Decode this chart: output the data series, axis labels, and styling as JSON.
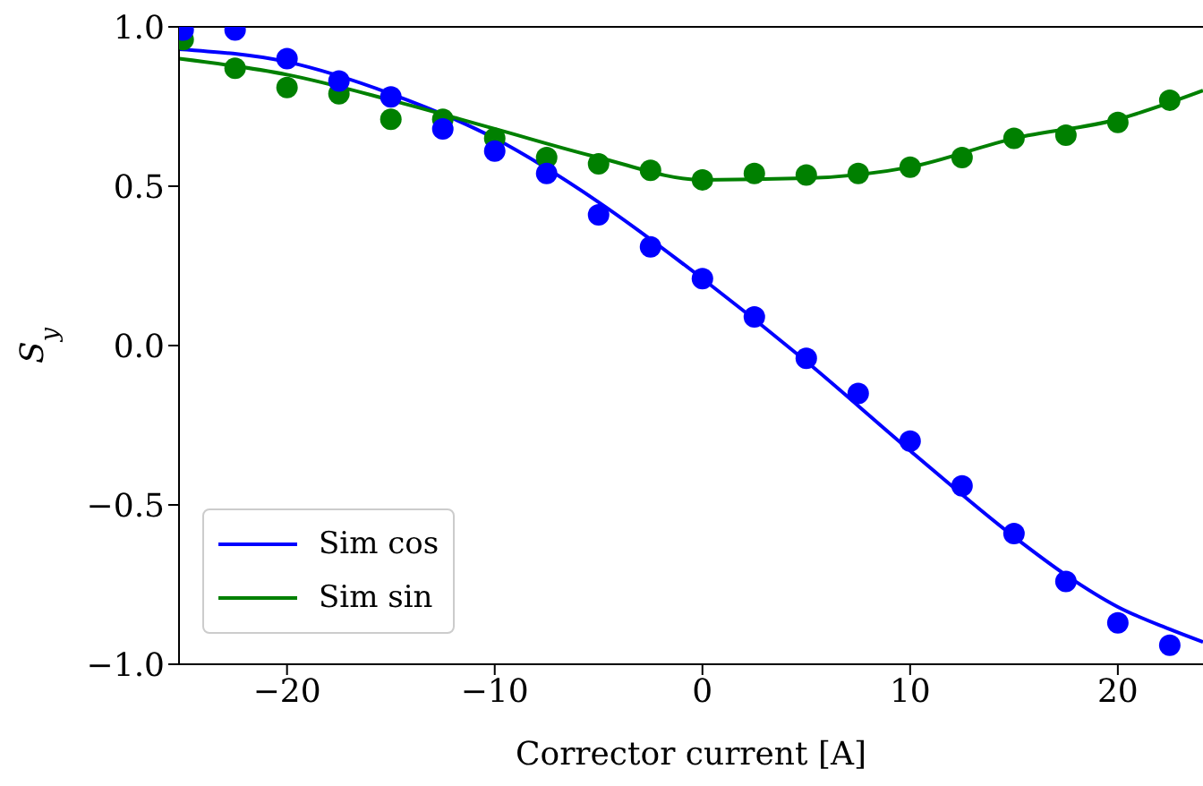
{
  "chart_data": {
    "type": "scatter",
    "xlabel": "Corrector current [A]",
    "ylabel": "S$_{y}$",
    "xlim": [
      -25.2,
      24.1
    ],
    "ylim": [
      -1.0,
      1.0
    ],
    "xticks": [
      {
        "value": -20,
        "label": "−20"
      },
      {
        "value": -10,
        "label": "−10"
      },
      0,
      10,
      20
    ],
    "yticks": [
      {
        "value": -1.0,
        "label": "−1.0"
      },
      {
        "value": -0.5,
        "label": "−0.5"
      },
      {
        "value": 0,
        "label": "0.0"
      },
      {
        "value": 0.5,
        "label": "0.5"
      },
      {
        "value": 1.0,
        "label": "1.0"
      }
    ],
    "grid": false,
    "legend": "bottom left",
    "marker": "circle",
    "series": [
      {
        "name": "Sim cos",
        "type": "line",
        "color": "#0000ff",
        "marker": "none",
        "x": [
          -25.2,
          -20,
          -15,
          -10,
          -5,
          0,
          5,
          10,
          15,
          17.5,
          20,
          22.5,
          24.1
        ],
        "values": [
          0.93,
          0.89,
          0.79,
          0.65,
          0.45,
          0.21,
          -0.05,
          -0.33,
          -0.6,
          -0.72,
          -0.82,
          -0.89,
          -0.93
        ]
      },
      {
        "name": "Sim sin",
        "type": "line",
        "color": "#008000",
        "marker": "none",
        "x": [
          -25.2,
          -20,
          -15,
          -10,
          -5,
          0,
          5,
          10,
          15,
          20,
          24.1
        ],
        "values": [
          0.9,
          0.85,
          0.77,
          0.68,
          0.59,
          0.52,
          0.525,
          0.56,
          0.65,
          0.71,
          0.8
        ]
      },
      {
        "color": "#008000",
        "x": [
          -25,
          -22.5,
          -20,
          -17.5,
          -15,
          -12.5,
          -10,
          -7.5,
          -5,
          -2.5,
          0,
          2.5,
          5,
          7.5,
          10,
          12.5,
          15,
          17.5,
          20,
          22.5
        ],
        "values": [
          0.96,
          0.87,
          0.81,
          0.79,
          0.71,
          0.71,
          0.65,
          0.59,
          0.57,
          0.55,
          0.52,
          0.54,
          0.535,
          0.54,
          0.56,
          0.59,
          0.65,
          0.66,
          0.7,
          0.77
        ]
      },
      {
        "color": "#0000ff",
        "x": [
          -25,
          -22.5,
          -20,
          -17.5,
          -15,
          -12.5,
          -10,
          -7.5,
          -5,
          -2.5,
          0,
          2.5,
          5,
          7.5,
          10,
          12.5,
          15,
          17.5,
          20,
          22.5
        ],
        "values": [
          0.99,
          0.99,
          0.9,
          0.83,
          0.78,
          0.68,
          0.61,
          0.54,
          0.41,
          0.31,
          0.21,
          0.09,
          -0.04,
          -0.15,
          -0.3,
          -0.44,
          -0.59,
          -0.74,
          -0.87,
          -0.94
        ]
      }
    ]
  }
}
